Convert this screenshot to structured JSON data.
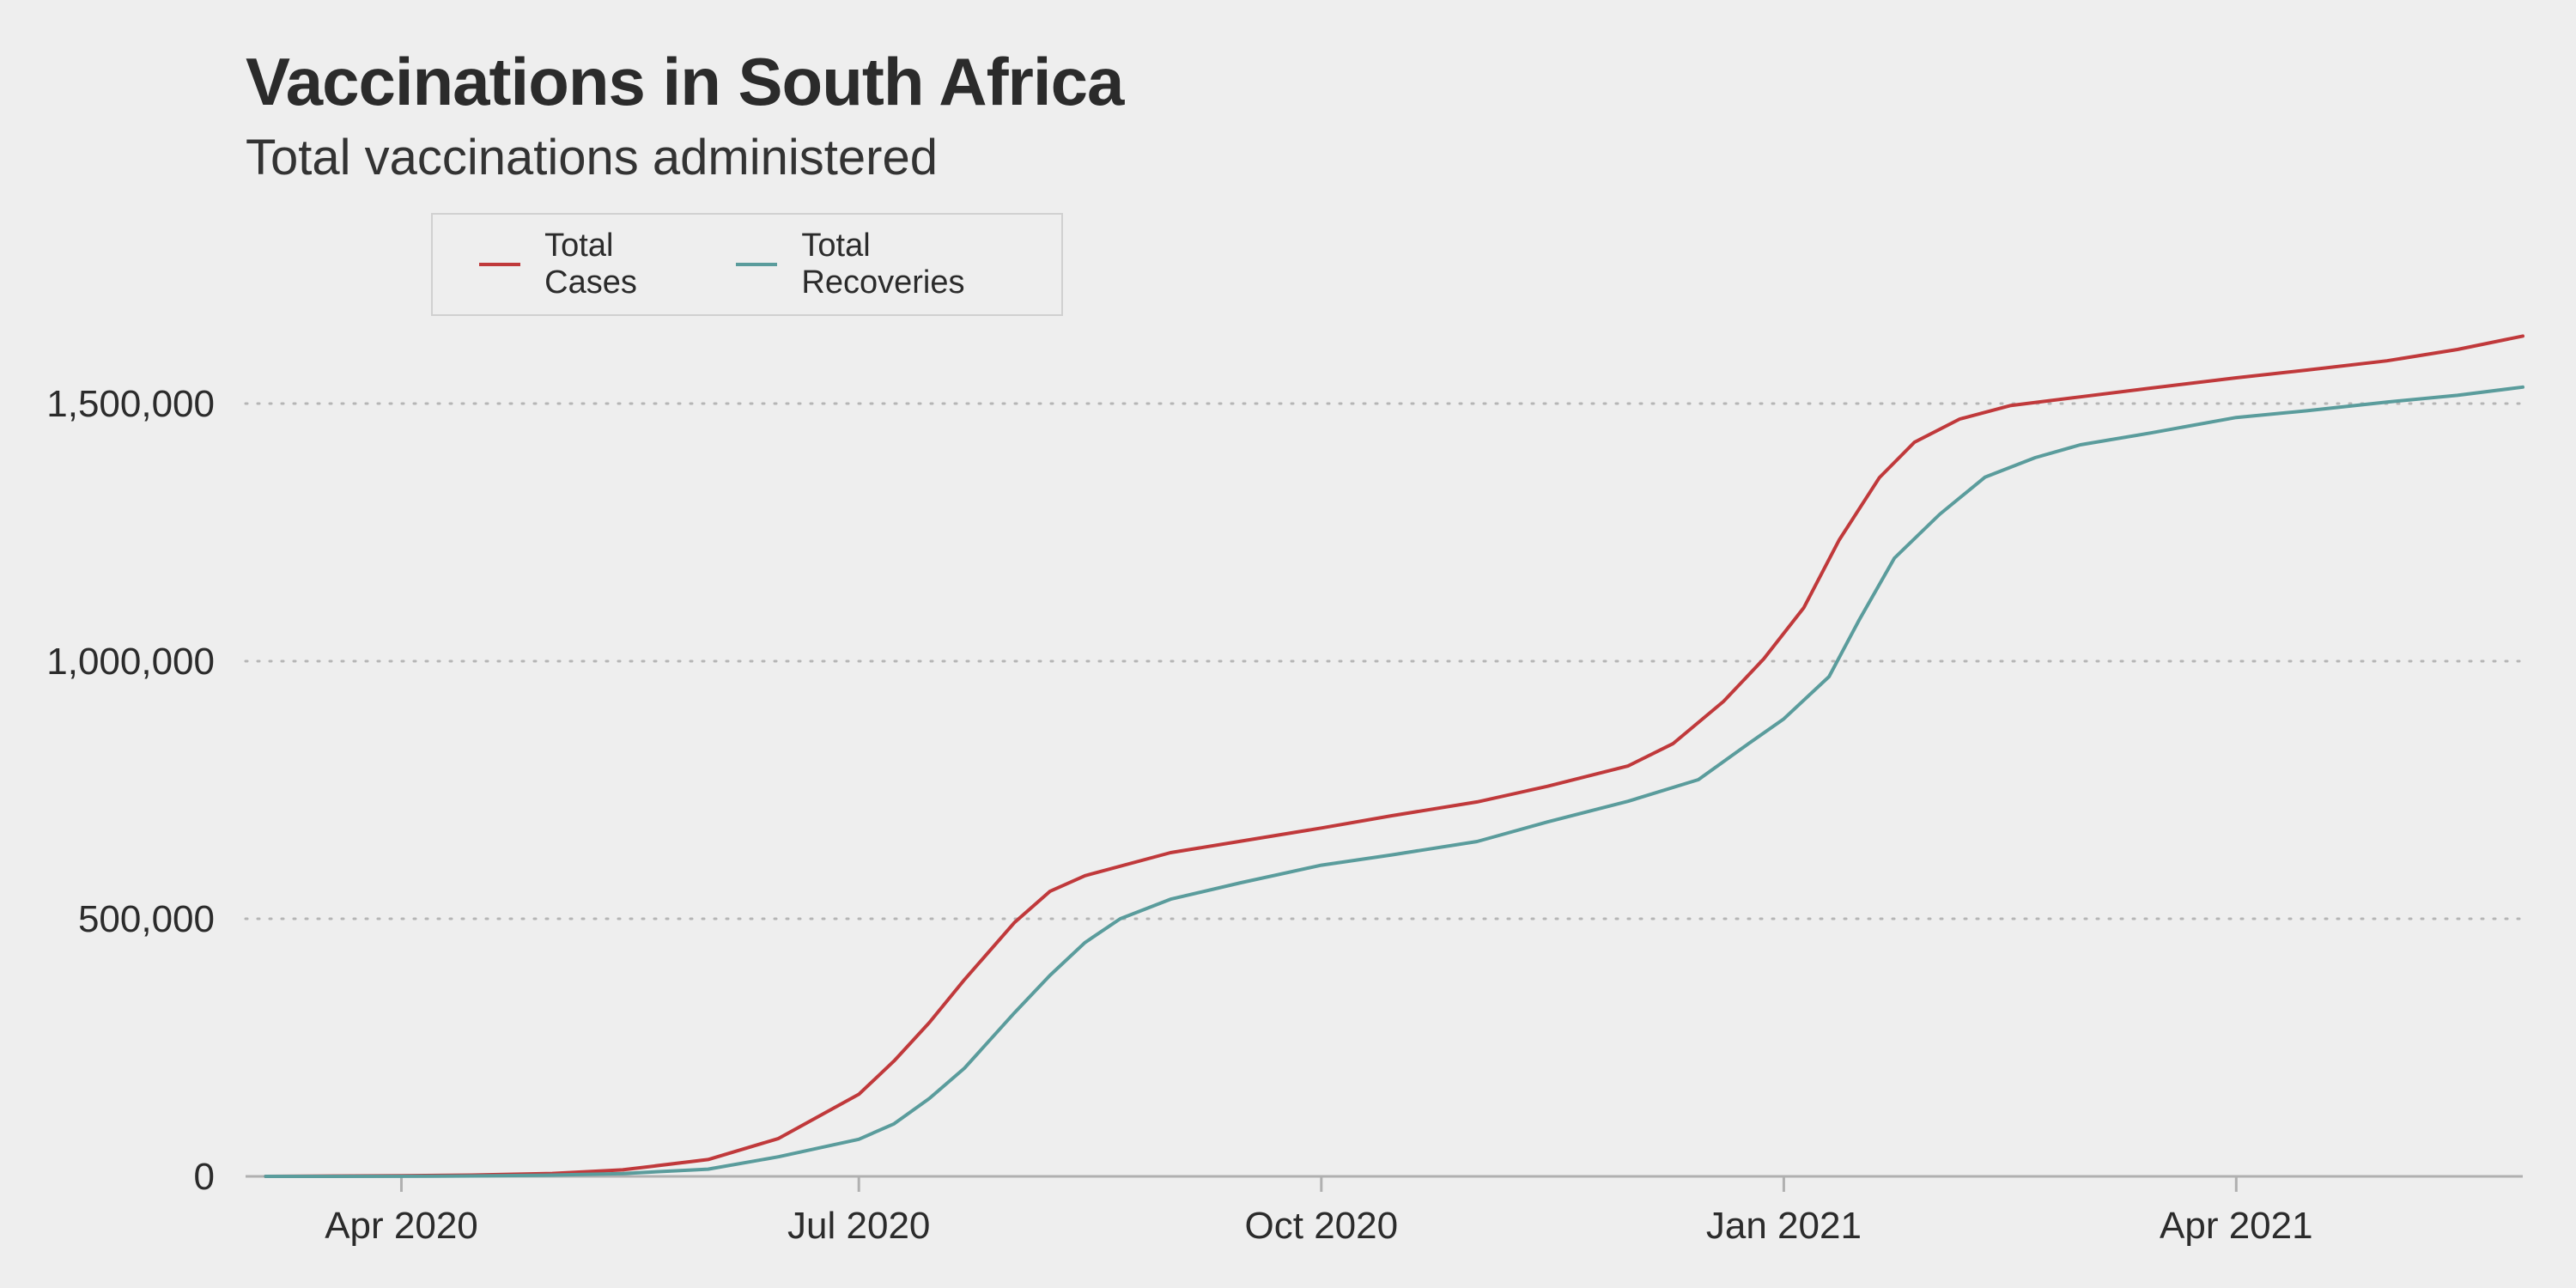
{
  "chart_data": {
    "type": "line",
    "title": "Vaccinations in South Africa",
    "subtitle": "Total vaccinations administered",
    "xlabel": "",
    "ylabel": "",
    "x_range": [
      "2020-03-01",
      "2021-05-28"
    ],
    "ylim": [
      0,
      1500000
    ],
    "y_ticks": [
      0,
      500000,
      1000000,
      1500000
    ],
    "y_tick_labels": [
      "0",
      "500,000",
      "1,000,000",
      "1,500,000"
    ],
    "x_ticks": [
      "2020-04-01",
      "2020-07-01",
      "2020-10-01",
      "2021-01-01",
      "2021-04-01"
    ],
    "x_tick_labels": [
      "Apr 2020",
      "Jul 2020",
      "Oct 2020",
      "Jan 2021",
      "Apr 2021"
    ],
    "grid": "horizontal-dotted",
    "legend_placement": "top-left",
    "series": [
      {
        "name": "Total Cases",
        "color": "#c0393b",
        "points": [
          [
            "2020-03-05",
            0
          ],
          [
            "2020-04-01",
            1400
          ],
          [
            "2020-04-15",
            2500
          ],
          [
            "2020-05-01",
            5600
          ],
          [
            "2020-05-15",
            12700
          ],
          [
            "2020-06-01",
            32700
          ],
          [
            "2020-06-15",
            73500
          ],
          [
            "2020-07-01",
            159300
          ],
          [
            "2020-07-08",
            224000
          ],
          [
            "2020-07-15",
            298300
          ],
          [
            "2020-07-22",
            381800
          ],
          [
            "2020-08-01",
            493200
          ],
          [
            "2020-08-08",
            553200
          ],
          [
            "2020-08-15",
            583600
          ],
          [
            "2020-09-01",
            628300
          ],
          [
            "2020-09-15",
            650700
          ],
          [
            "2020-10-01",
            676100
          ],
          [
            "2020-10-15",
            700000
          ],
          [
            "2020-11-01",
            726800
          ],
          [
            "2020-11-15",
            757100
          ],
          [
            "2020-12-01",
            796500
          ],
          [
            "2020-12-10",
            840100
          ],
          [
            "2020-12-20",
            921900
          ],
          [
            "2020-12-28",
            1004400
          ],
          [
            "2021-01-05",
            1104000
          ],
          [
            "2021-01-12",
            1235000
          ],
          [
            "2021-01-20",
            1356000
          ],
          [
            "2021-01-27",
            1425000
          ],
          [
            "2021-02-05",
            1470000
          ],
          [
            "2021-02-15",
            1496000
          ],
          [
            "2021-03-01",
            1513000
          ],
          [
            "2021-03-15",
            1530000
          ],
          [
            "2021-04-01",
            1550000
          ],
          [
            "2021-04-15",
            1565000
          ],
          [
            "2021-05-01",
            1583000
          ],
          [
            "2021-05-15",
            1605000
          ],
          [
            "2021-05-28",
            1631000
          ]
        ]
      },
      {
        "name": "Total Recoveries",
        "color": "#5a9c9c",
        "points": [
          [
            "2020-03-05",
            0
          ],
          [
            "2020-04-01",
            200
          ],
          [
            "2020-04-15",
            900
          ],
          [
            "2020-05-01",
            2500
          ],
          [
            "2020-05-15",
            5500
          ],
          [
            "2020-06-01",
            14000
          ],
          [
            "2020-06-15",
            38000
          ],
          [
            "2020-07-01",
            72000
          ],
          [
            "2020-07-08",
            102000
          ],
          [
            "2020-07-15",
            151000
          ],
          [
            "2020-07-22",
            210000
          ],
          [
            "2020-08-01",
            318000
          ],
          [
            "2020-08-08",
            390000
          ],
          [
            "2020-08-15",
            454000
          ],
          [
            "2020-08-22",
            500000
          ],
          [
            "2020-09-01",
            538000
          ],
          [
            "2020-09-15",
            570000
          ],
          [
            "2020-10-01",
            604000
          ],
          [
            "2020-10-15",
            624000
          ],
          [
            "2020-11-01",
            650000
          ],
          [
            "2020-11-15",
            688000
          ],
          [
            "2020-12-01",
            728000
          ],
          [
            "2020-12-15",
            770000
          ],
          [
            "2020-12-25",
            840000
          ],
          [
            "2021-01-01",
            888000
          ],
          [
            "2021-01-10",
            970000
          ],
          [
            "2021-01-16",
            1080000
          ],
          [
            "2021-01-23",
            1200000
          ],
          [
            "2021-02-01",
            1285000
          ],
          [
            "2021-02-10",
            1357000
          ],
          [
            "2021-02-20",
            1395000
          ],
          [
            "2021-03-01",
            1420000
          ],
          [
            "2021-03-15",
            1443000
          ],
          [
            "2021-04-01",
            1473000
          ],
          [
            "2021-04-15",
            1486000
          ],
          [
            "2021-05-01",
            1503000
          ],
          [
            "2021-05-15",
            1516000
          ],
          [
            "2021-05-28",
            1532000
          ]
        ]
      }
    ]
  }
}
